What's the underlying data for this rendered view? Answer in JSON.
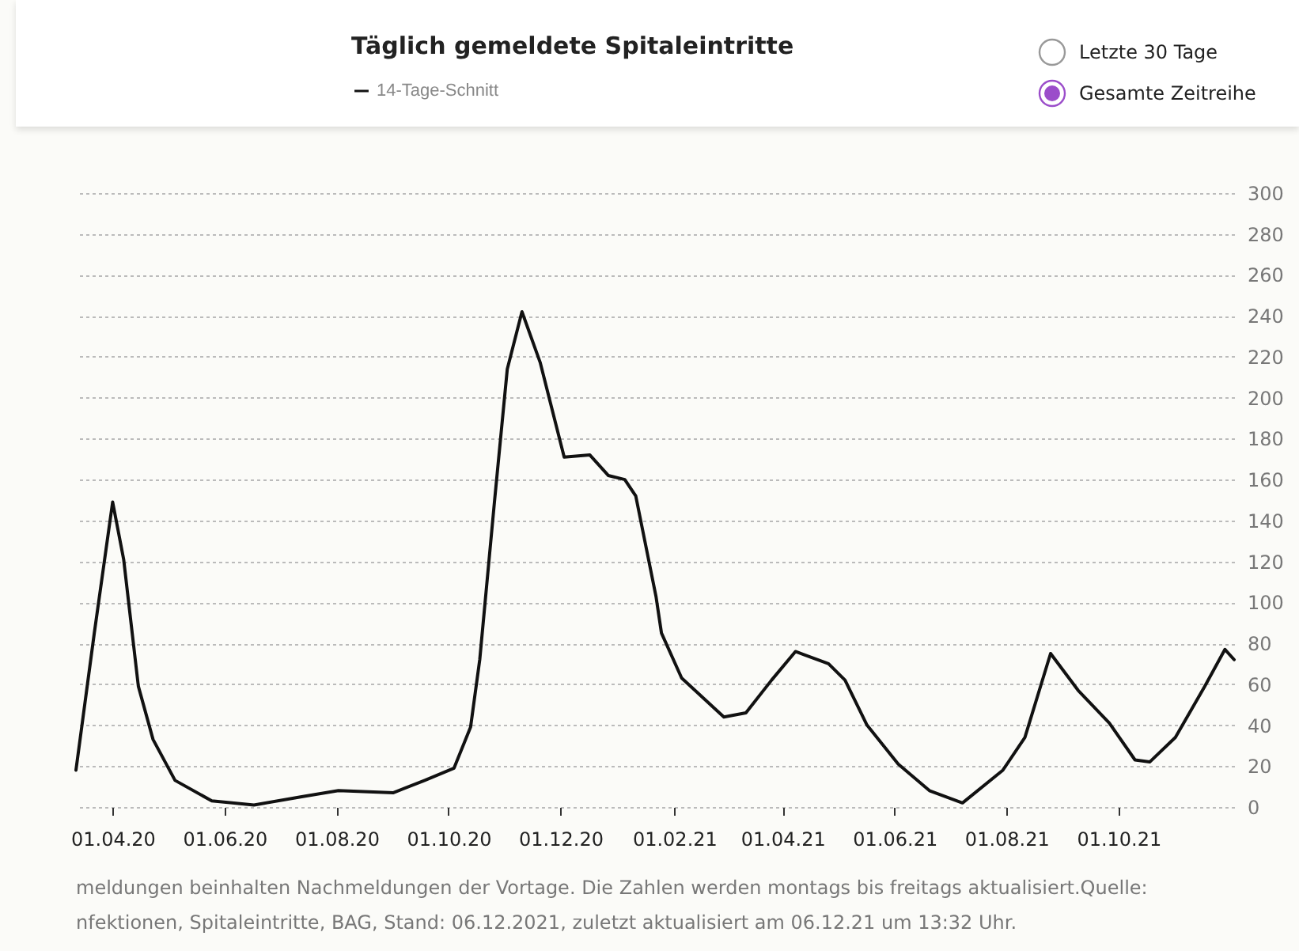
{
  "chart_data": {
    "type": "line",
    "title": "Täglich gemeldete Spitaleintritte",
    "x": [
      "2020-03-12",
      "2020-03-22",
      "2020-04-01",
      "2020-04-07",
      "2020-04-15",
      "2020-04-23",
      "2020-05-05",
      "2020-05-25",
      "2020-06-17",
      "2020-07-13",
      "2020-08-02",
      "2020-09-01",
      "2020-09-18",
      "2020-10-04",
      "2020-10-13",
      "2020-10-18",
      "2020-10-26",
      "2020-11-02",
      "2020-11-10",
      "2020-11-20",
      "2020-12-01",
      "2020-12-03",
      "2020-12-17",
      "2020-12-27",
      "2021-01-05",
      "2021-01-11",
      "2021-01-22",
      "2021-01-25",
      "2021-02-05",
      "2021-02-28",
      "2021-03-12",
      "2021-03-26",
      "2021-04-08",
      "2021-04-26",
      "2021-05-05",
      "2021-05-17",
      "2021-06-03",
      "2021-06-20",
      "2021-07-08",
      "2021-07-30",
      "2021-08-11",
      "2021-08-25",
      "2021-09-09",
      "2021-09-26",
      "2021-10-10",
      "2021-10-18",
      "2021-11-01",
      "2021-11-17",
      "2021-11-28",
      "2021-12-03"
    ],
    "series": [
      {
        "name": "14-Tage-Schnitt",
        "color": "#111111",
        "values": [
          18,
          85,
          149,
          121,
          59,
          33,
          13,
          3,
          1,
          5,
          8,
          7,
          13,
          19,
          39,
          72,
          149,
          214,
          242,
          217,
          178,
          171,
          172,
          162,
          160,
          152,
          103,
          85,
          63,
          44,
          46,
          62,
          76,
          70,
          62,
          40,
          21,
          8,
          2,
          18,
          34,
          75,
          57,
          41,
          23,
          22,
          34,
          59,
          77,
          72
        ]
      }
    ],
    "xlim": [
      "2020-03-12",
      "2021-12-03"
    ],
    "xticks": [
      {
        "value": "2020-04-01",
        "label": "01.04.20"
      },
      {
        "value": "2020-06-01",
        "label": "01.06.20"
      },
      {
        "value": "2020-08-01",
        "label": "01.08.20"
      },
      {
        "value": "2020-10-01",
        "label": "01.10.20"
      },
      {
        "value": "2020-12-01",
        "label": "01.12.20"
      },
      {
        "value": "2021-02-01",
        "label": "01.02.21"
      },
      {
        "value": "2021-04-01",
        "label": "01.04.21"
      },
      {
        "value": "2021-06-01",
        "label": "01.06.21"
      },
      {
        "value": "2021-08-01",
        "label": "01.08.21"
      },
      {
        "value": "2021-10-01",
        "label": "01.10.21"
      }
    ],
    "ylim": [
      0,
      300
    ],
    "yticks": [
      0,
      20,
      40,
      60,
      80,
      100,
      120,
      140,
      160,
      180,
      200,
      220,
      240,
      260,
      280,
      300
    ],
    "grid": "y",
    "legend": "top",
    "line_style": "solid",
    "annotations": [
      "Letzte 30 Tage",
      "Gesamte Zeitreihe",
      "meldungen beinhalten Nachmeldungen der Vortage. Die Zahlen werden montags bis freitags aktualisiert.Quelle:",
      "nfektionen, Spitaleintritte, BAG, Stand: 06.12.2021, zuletzt aktualisiert am 06.12.21 um 13:32 Uhr."
    ]
  }
}
